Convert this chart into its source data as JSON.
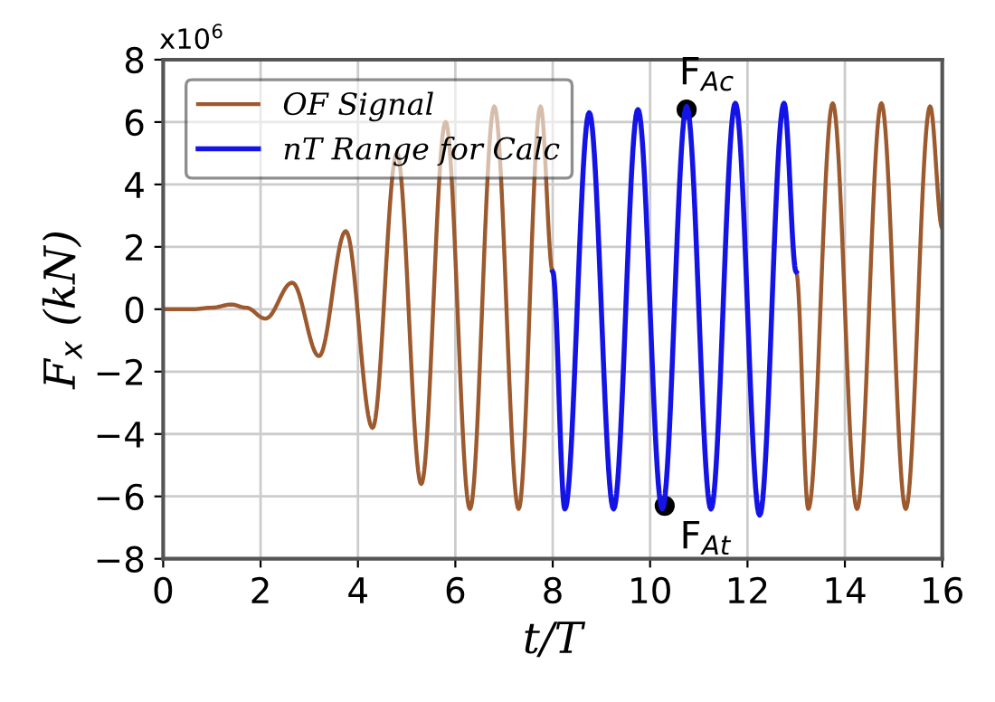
{
  "chart_data": {
    "type": "line",
    "xlabel": "t/T",
    "ylabel": "F$_{x}$ (kN)",
    "xlim": [
      0,
      16
    ],
    "xticks": [
      0,
      2,
      4,
      6,
      8,
      10,
      12,
      14,
      16
    ],
    "ylim": [
      -8,
      8
    ],
    "yticks": [
      -8,
      -6,
      -4,
      -2,
      0,
      2,
      4,
      6,
      8
    ],
    "grid": true,
    "legend": "top left",
    "line_style": "solid",
    "marker": "none",
    "series": [
      {
        "name": "OF Signal",
        "color": "#9c5a2e",
        "x": [
          0,
          0.6,
          1.0,
          1.4,
          1.7,
          2.1,
          2.65,
          3.2,
          3.75,
          4.3,
          4.8,
          5.3,
          5.8,
          6.3,
          6.8,
          7.3,
          7.75,
          8.0,
          null,
          13.0,
          13.25,
          13.75,
          14.25,
          14.75,
          15.25,
          15.75,
          16
        ],
        "values": [
          0,
          0,
          0.05,
          0.15,
          0.05,
          -0.3,
          0.85,
          -1.5,
          2.5,
          -3.8,
          5.0,
          -5.6,
          6.0,
          -6.4,
          6.5,
          -6.4,
          6.5,
          1.2,
          null,
          1.2,
          -6.4,
          6.6,
          -6.4,
          6.6,
          -6.4,
          6.5,
          2.6
        ]
      },
      {
        "name": "nT Range for Calc",
        "color": "#1414e6",
        "x": [
          8.0,
          8.25,
          8.75,
          9.25,
          9.75,
          10.25,
          10.75,
          11.25,
          11.75,
          12.25,
          12.75,
          13.0
        ],
        "values": [
          1.2,
          -6.4,
          6.3,
          -6.4,
          6.4,
          -6.4,
          6.5,
          -6.4,
          6.6,
          -6.6,
          6.6,
          1.2
        ]
      }
    ],
    "annotations": [
      "x10$^{6}$",
      {
        "text": "F$_{Ac}$",
        "x": 10.75,
        "y": 6.4
      },
      {
        "text": "F$_{At}$",
        "x": 10.3,
        "y": -6.3
      }
    ]
  }
}
